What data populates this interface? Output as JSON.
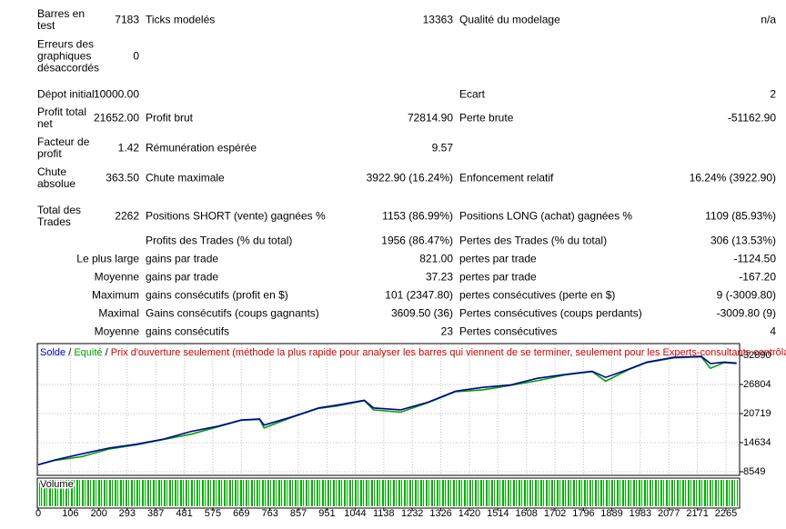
{
  "report": {
    "rows": [
      {
        "label": "Barres en test",
        "value": "7183",
        "label2": "Ticks modelés",
        "value2": "13363",
        "label3": "Qualité du modelage",
        "value3": "n/a"
      },
      {
        "label": "Erreurs des graphiques désaccordés",
        "value": "0"
      },
      {
        "label": "Dépot initial",
        "value": "10000.00",
        "label3": "Ecart",
        "value3": "2"
      },
      {
        "label": "Profit total net",
        "value": "21652.00",
        "label2": "Profit brut",
        "value2": "72814.90",
        "label3": "Perte brute",
        "value3": "-51162.90"
      },
      {
        "label": "Facteur de profit",
        "value": "1.42",
        "label2": "Rémunération espérée",
        "value2": "9.57"
      },
      {
        "label": "Chute absolue",
        "value": "363.50",
        "label2": "Chute maximale",
        "value2": "3922.90 (16.24%)",
        "label3": "Enfoncement relatif",
        "value3": "16.24% (3922.90)"
      },
      {
        "label": "Total des Trades",
        "value": "2262",
        "label2": "Positions SHORT (vente) gagnées %",
        "value2": "1153 (86.99%)",
        "label3": "Positions LONG (achat) gagnées %",
        "value3": "1109 (85.93%)"
      },
      {
        "label2": "Profits des Trades (% du total)",
        "value2": "1956 (86.47%)",
        "label3": "Pertes des Trades (% du total)",
        "value3": "306 (13.53%)"
      },
      {
        "label": "Le plus large",
        "label2": "gains par trade",
        "value2": "821.00",
        "label3": "pertes par trade",
        "value3": "-1124.50"
      },
      {
        "label": "Moyenne",
        "label2": "gains par trade",
        "value2": "37.23",
        "label3": "pertes par trade",
        "value3": "-167.20"
      },
      {
        "label": "Maximum",
        "label2": "gains consécutifs (profit en $)",
        "value2": "101 (2347.80)",
        "label3": "pertes consécutives (perte en $)",
        "value3": "9 (-3009.80)"
      },
      {
        "label": "Maximal",
        "label2": "Gains consécutifs (coups gagnants)",
        "value2": "3609.50 (36)",
        "label3": "Pertes consécutives (coups perdants)",
        "value3": "-3009.80 (9)"
      },
      {
        "label": "Moyenne",
        "label2": "gains consécutifs",
        "value2": "23",
        "label3": "Pertes consécutives",
        "value3": "4"
      }
    ]
  },
  "chart_data": {
    "type": "line",
    "title": "Prix d'ouverture seulement (méthode la plus rapide pour analyser les barres qui viennent de se terminer, seulement pour les Experts-consultants contrôlant explicitement l'o",
    "separator": "/",
    "volume_label": "Volume",
    "x": [
      0,
      54,
      144,
      234,
      324,
      414,
      504,
      594,
      669,
      729,
      744,
      834,
      924,
      984,
      1074,
      1104,
      1194,
      1284,
      1374,
      1464,
      1554,
      1644,
      1734,
      1824,
      1869,
      1944,
      2004,
      2094,
      2184,
      2214,
      2259,
      2300
    ],
    "series": [
      {
        "name": "Solde",
        "color": "#0000a0",
        "values": [
          10000,
          11000,
          12300,
          13500,
          14300,
          15400,
          17000,
          18100,
          19400,
          19600,
          18300,
          20000,
          21900,
          22500,
          23500,
          21900,
          21500,
          23100,
          25400,
          26200,
          26700,
          28100,
          28900,
          29600,
          28300,
          30000,
          31500,
          32500,
          32700,
          31200,
          31500,
          31300
        ]
      },
      {
        "name": "Equité",
        "color": "#00a000",
        "values": [
          10000,
          10900,
          11700,
          13300,
          14200,
          15300,
          16400,
          18000,
          19300,
          19500,
          17700,
          19900,
          21800,
          22300,
          23400,
          21500,
          21000,
          23000,
          25300,
          25700,
          26600,
          27600,
          28800,
          29500,
          27500,
          29900,
          31400,
          32400,
          32600,
          30200,
          31400,
          31200
        ]
      }
    ],
    "xlim": [
      0,
      2304
    ],
    "ylim": [
      7970,
      35190
    ],
    "xticks": [
      0,
      106,
      200,
      293,
      387,
      481,
      575,
      669,
      763,
      857,
      951,
      1044,
      1138,
      1232,
      1326,
      1420,
      1514,
      1608,
      1702,
      1796,
      1889,
      1983,
      2077,
      2171,
      2265
    ],
    "yticks": [
      8549,
      14634,
      20719,
      26804,
      32890
    ],
    "grid": true
  }
}
